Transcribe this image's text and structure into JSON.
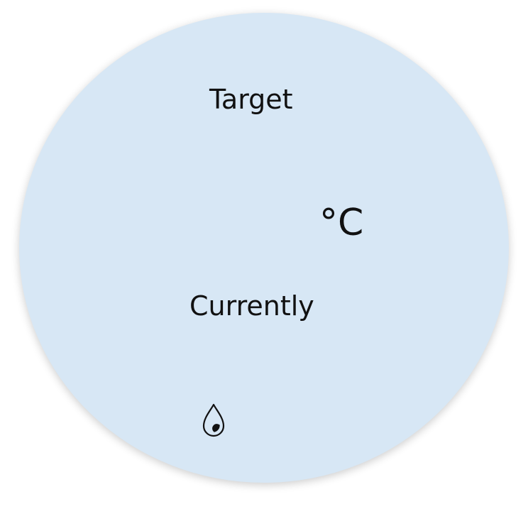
{
  "thermostat": {
    "target_label": "Target",
    "unit": "°C",
    "current_label": "Currently",
    "humidity_icon": "water-drop-icon",
    "dial_color": "#d7e7f5"
  }
}
